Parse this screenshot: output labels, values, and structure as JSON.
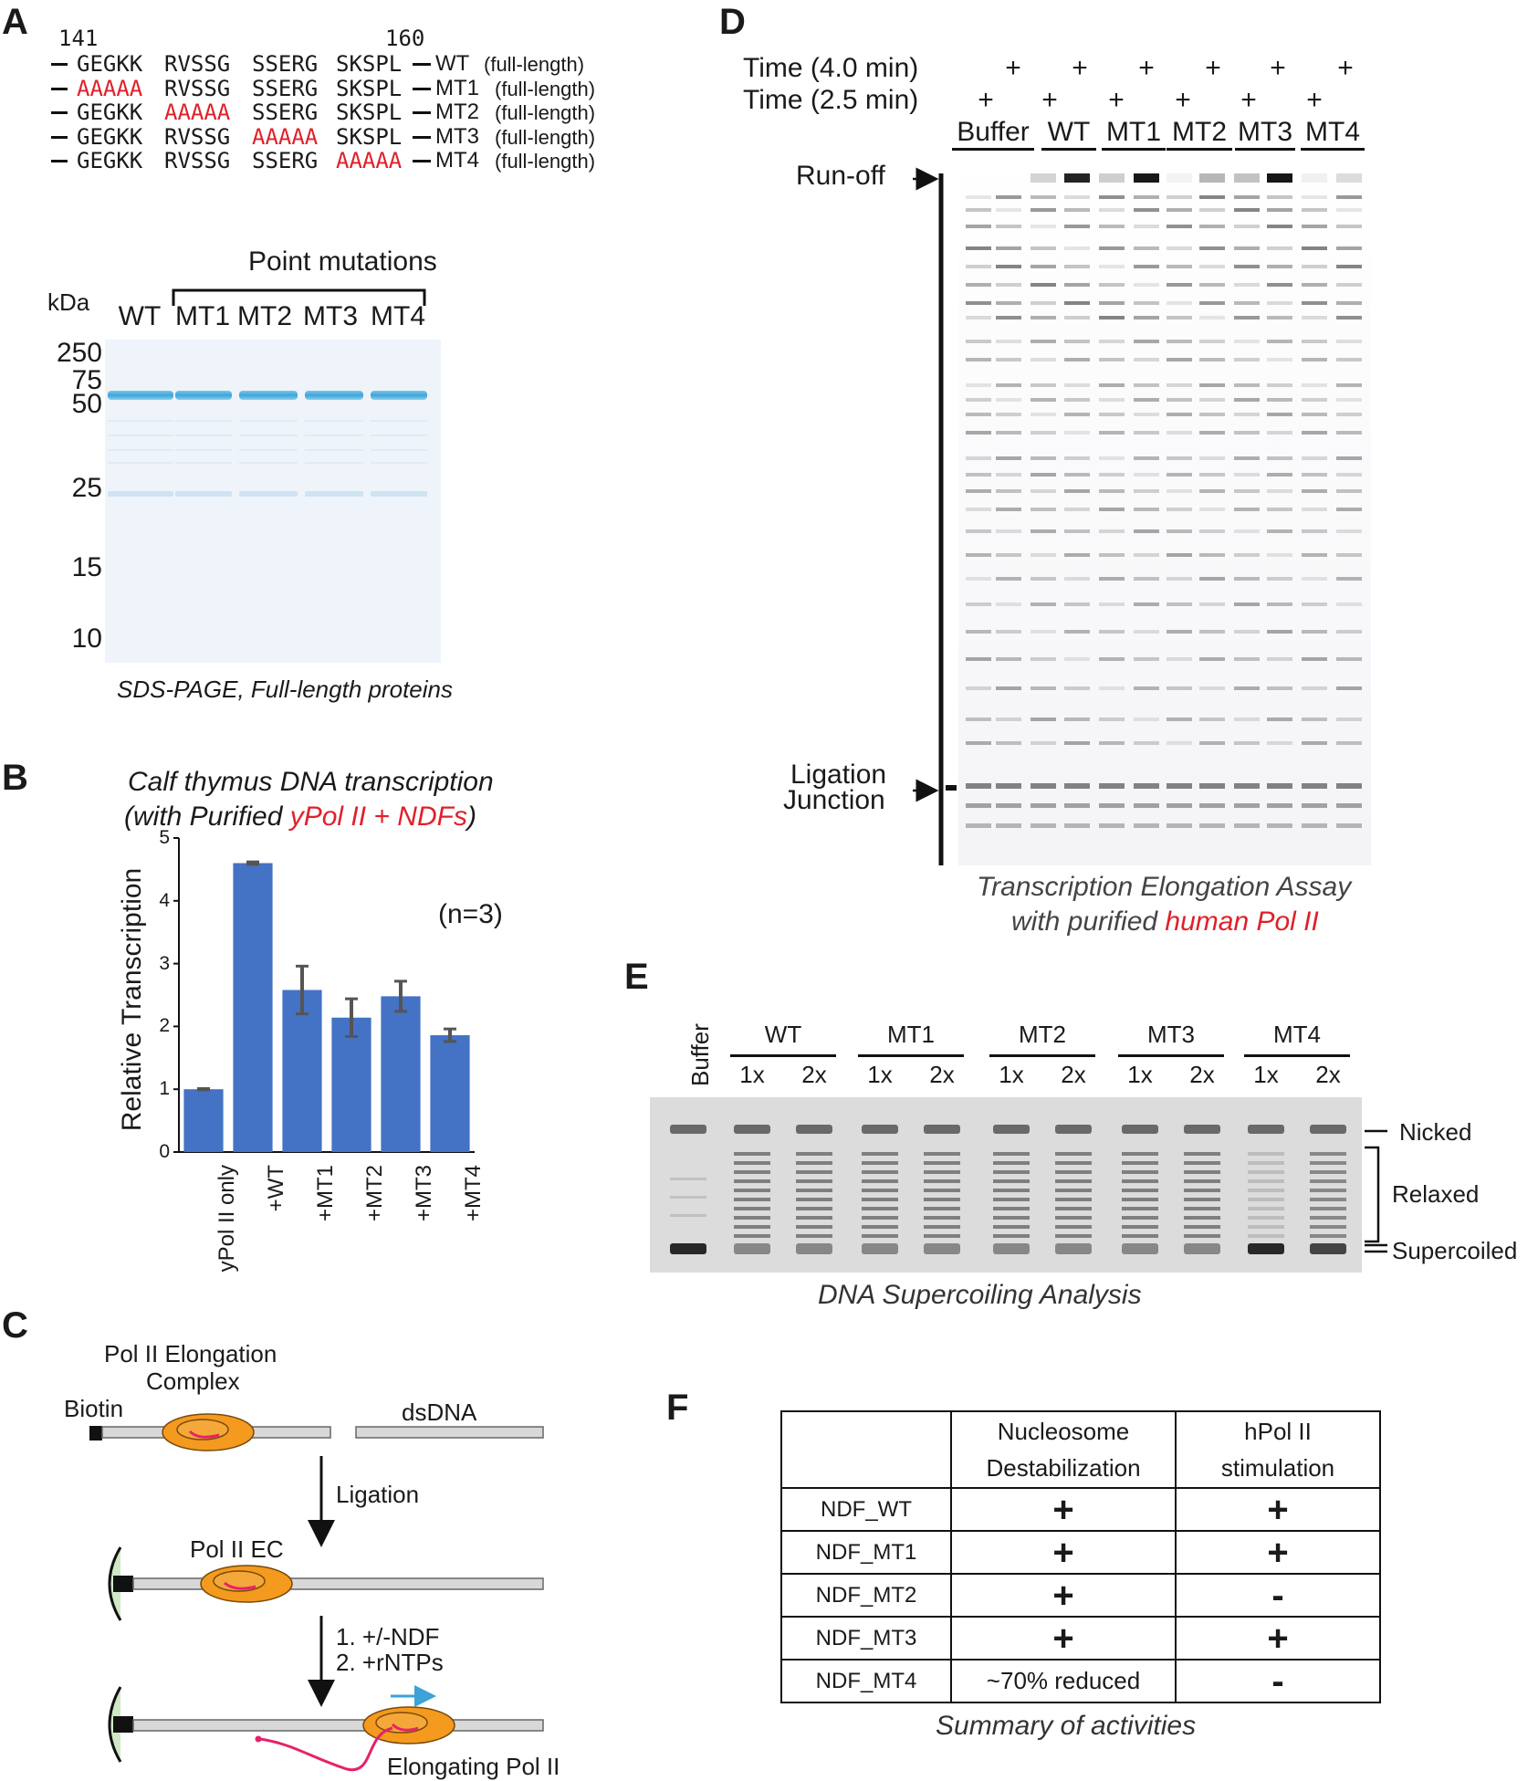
{
  "panel_a": {
    "letter": "A",
    "seq_start": "141",
    "seq_end": "160",
    "sequences": [
      {
        "blocks": [
          "GEGKK",
          "RVSSG",
          "SSERG",
          "SKSPL"
        ],
        "mut": -1,
        "name": "WT",
        "note": "(full-length)"
      },
      {
        "blocks": [
          "AAAAA",
          "RVSSG",
          "SSERG",
          "SKSPL"
        ],
        "mut": 0,
        "name": "MT1",
        "note": "(full-length)"
      },
      {
        "blocks": [
          "GEGKK",
          "AAAAA",
          "SSERG",
          "SKSPL"
        ],
        "mut": 1,
        "name": "MT2",
        "note": "(full-length)"
      },
      {
        "blocks": [
          "GEGKK",
          "RVSSG",
          "AAAAA",
          "SKSPL"
        ],
        "mut": 2,
        "name": "MT3",
        "note": "(full-length)"
      },
      {
        "blocks": [
          "GEGKK",
          "RVSSG",
          "SSERG",
          "AAAAA"
        ],
        "mut": 3,
        "name": "MT4",
        "note": "(full-length)"
      }
    ],
    "point_mutations_label": "Point mutations",
    "kda_label": "kDa",
    "lanes": [
      "WT",
      "MT1",
      "MT2",
      "MT3",
      "MT4"
    ],
    "markers": [
      "250",
      "75",
      "50",
      "25",
      "15",
      "10"
    ],
    "caption": "SDS-PAGE, Full-length proteins"
  },
  "panel_b": {
    "letter": "B",
    "title_line1": "Calf thymus DNA transcription",
    "title_prefix": "(with Purified ",
    "title_highlight": "yPol II + NDFs",
    "title_suffix": ")",
    "n_label": "(n=3)",
    "colors": {
      "bar": "#4472c4",
      "error": "#555555"
    }
  },
  "chart_data": {
    "type": "bar",
    "title": "Calf thymus DNA transcription (with Purified yPol II + NDFs)",
    "xlabel": "",
    "ylabel": "Relative Transcription",
    "ylim": [
      0,
      5
    ],
    "yticks": [
      "0",
      "1",
      "2",
      "3",
      "4",
      "5"
    ],
    "categories": [
      "yPol II only",
      "+WT",
      "+MT1",
      "+MT2",
      "+MT3",
      "+MT4"
    ],
    "values": [
      1.0,
      4.6,
      2.58,
      2.14,
      2.48,
      1.86
    ],
    "errors": [
      0.01,
      0.02,
      0.38,
      0.3,
      0.24,
      0.1
    ]
  },
  "panel_c": {
    "letter": "C",
    "ec_label_line1": "Pol II Elongation",
    "ec_label_line2": "Complex",
    "biotin": "Biotin",
    "dsdna": "dsDNA",
    "ligation": "Ligation",
    "pol2_ec": "Pol II EC",
    "step1": "1. +/-NDF",
    "step2": "2. +rNTPs",
    "elongating": "Elongating Pol II"
  },
  "panel_d": {
    "letter": "D",
    "time_4": "Time (4.0 min)",
    "time_25": "Time (2.5 min)",
    "plus": "+",
    "groups": [
      "Buffer",
      "WT",
      "MT1",
      "MT2",
      "MT3",
      "MT4"
    ],
    "run_off": "Run-off",
    "ligation_line1": "Ligation",
    "ligation_line2": "Junction",
    "caption_line1": "Transcription Elongation Assay",
    "caption_prefix": "with purified ",
    "caption_highlight": "human Pol II"
  },
  "panel_e": {
    "letter": "E",
    "buffer": "Buffer",
    "groups": [
      "WT",
      "MT1",
      "MT2",
      "MT3",
      "MT4"
    ],
    "dose_1x": "1x",
    "dose_2x": "2x",
    "nicked": "Nicked",
    "relaxed": "Relaxed",
    "supercoiled": "Supercoiled",
    "caption": "DNA Supercoiling Analysis"
  },
  "panel_f": {
    "letter": "F",
    "col1_line1": "Nucleosome",
    "col1_line2": "Destabilization",
    "col2_line1": "hPol II",
    "col2_line2": "stimulation",
    "rows": [
      {
        "name": "NDF_WT",
        "nuc": "+",
        "hpol": "+"
      },
      {
        "name": "NDF_MT1",
        "nuc": "+",
        "hpol": "+"
      },
      {
        "name": "NDF_MT2",
        "nuc": "+",
        "hpol": "-"
      },
      {
        "name": "NDF_MT3",
        "nuc": "+",
        "hpol": "+"
      },
      {
        "name": "NDF_MT4",
        "nuc": "~70% reduced",
        "hpol": "-"
      }
    ],
    "caption": "Summary of activities"
  }
}
